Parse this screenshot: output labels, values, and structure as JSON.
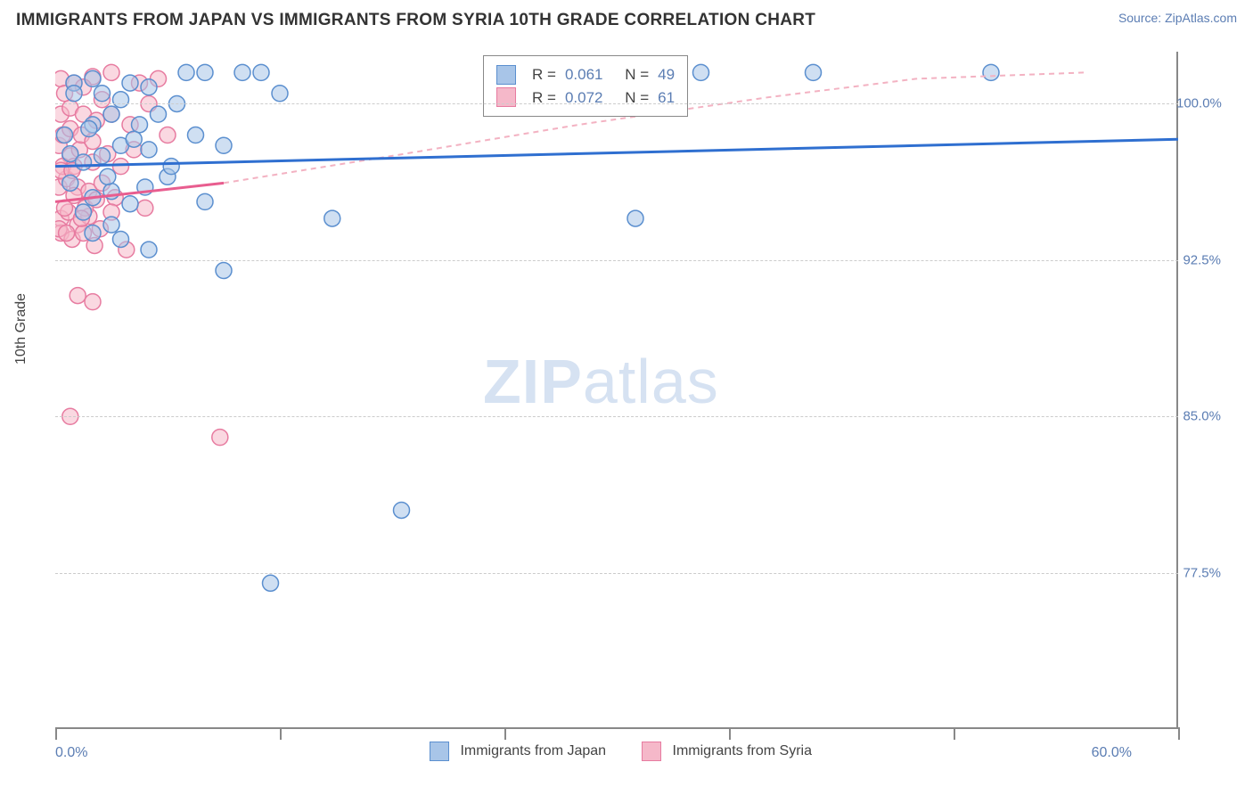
{
  "header": {
    "title": "IMMIGRANTS FROM JAPAN VS IMMIGRANTS FROM SYRIA 10TH GRADE CORRELATION CHART",
    "source_prefix": "Source: ",
    "source_value": "ZipAtlas.com"
  },
  "chart": {
    "type": "scatter",
    "xlim": [
      0,
      60
    ],
    "ylim": [
      70,
      102.5
    ],
    "xticks": [
      0,
      12,
      24,
      36,
      48,
      60
    ],
    "xtick_labels_shown": {
      "first": "0.0%",
      "last": "60.0%"
    },
    "yticks": [
      77.5,
      85.0,
      92.5,
      100.0
    ],
    "ytick_labels": [
      "77.5%",
      "85.0%",
      "92.5%",
      "100.0%"
    ],
    "ylabel": "10th Grade",
    "background_color": "#ffffff",
    "grid_color": "#cccccc",
    "grid_dash": "4,3",
    "axis_color": "#888888",
    "marker_radius": 9,
    "marker_stroke_width": 1.5,
    "series": [
      {
        "id": "japan",
        "label": "Immigrants from Japan",
        "fill": "#a8c5e8",
        "fill_opacity": 0.55,
        "stroke": "#5b8fcf",
        "trend_stroke": "#2f6fd0",
        "trend_width": 3,
        "trend": {
          "x1": 0,
          "y1": 97.0,
          "x2": 60,
          "y2": 98.3
        },
        "R_label": "R =",
        "R_value": "0.061",
        "N_label": "N =",
        "N_value": "49",
        "points": [
          [
            34.5,
            101.5
          ],
          [
            40.5,
            101.5
          ],
          [
            50.0,
            101.5
          ],
          [
            7.0,
            101.5
          ],
          [
            8.0,
            101.5
          ],
          [
            10.0,
            101.5
          ],
          [
            11.0,
            101.5
          ],
          [
            1.0,
            101.0
          ],
          [
            2.5,
            100.5
          ],
          [
            4.0,
            101.0
          ],
          [
            3.0,
            99.5
          ],
          [
            2.0,
            99.0
          ],
          [
            4.5,
            99.0
          ],
          [
            5.5,
            99.5
          ],
          [
            6.5,
            100.0
          ],
          [
            0.8,
            97.6
          ],
          [
            1.5,
            97.2
          ],
          [
            2.5,
            97.5
          ],
          [
            3.5,
            98.0
          ],
          [
            5.0,
            97.8
          ],
          [
            7.5,
            98.5
          ],
          [
            9.0,
            98.0
          ],
          [
            2.0,
            95.5
          ],
          [
            3.0,
            95.8
          ],
          [
            4.0,
            95.2
          ],
          [
            0.8,
            96.2
          ],
          [
            8.0,
            95.3
          ],
          [
            14.8,
            94.5
          ],
          [
            31.0,
            94.5
          ],
          [
            9.0,
            92.0
          ],
          [
            2.0,
            93.8
          ],
          [
            3.5,
            93.5
          ],
          [
            5.0,
            93.0
          ],
          [
            1.5,
            94.8
          ],
          [
            18.5,
            80.5
          ],
          [
            11.5,
            77.0
          ],
          [
            6.0,
            96.5
          ],
          [
            1.0,
            100.5
          ],
          [
            3.5,
            100.2
          ],
          [
            2.0,
            101.2
          ],
          [
            5.0,
            100.8
          ],
          [
            12.0,
            100.5
          ],
          [
            0.5,
            98.5
          ],
          [
            1.8,
            98.8
          ],
          [
            4.2,
            98.3
          ],
          [
            2.8,
            96.5
          ],
          [
            6.2,
            97.0
          ],
          [
            3.0,
            94.2
          ],
          [
            4.8,
            96.0
          ]
        ]
      },
      {
        "id": "syria",
        "label": "Immigrants from Syria",
        "fill": "#f5b8c9",
        "fill_opacity": 0.55,
        "stroke": "#e77ba0",
        "trend_stroke": "#e85d8f",
        "trend_width": 3,
        "trend": {
          "x1": 0,
          "y1": 95.3,
          "x2": 9,
          "y2": 96.2
        },
        "extrap_dash": "6,5",
        "extrap_stroke": "#f3b2c2",
        "extrap_curve": [
          [
            9,
            96.2
          ],
          [
            18,
            97.5
          ],
          [
            28,
            99.0
          ],
          [
            38,
            100.3
          ],
          [
            46,
            101.2
          ],
          [
            55,
            101.5
          ]
        ],
        "R_label": "R =",
        "R_value": "0.072",
        "N_label": "N =",
        "N_value": "61",
        "points": [
          [
            0.3,
            101.2
          ],
          [
            1.0,
            101.0
          ],
          [
            2.0,
            101.3
          ],
          [
            3.0,
            101.5
          ],
          [
            4.5,
            101.0
          ],
          [
            5.5,
            101.2
          ],
          [
            0.3,
            99.5
          ],
          [
            0.8,
            99.8
          ],
          [
            1.5,
            99.5
          ],
          [
            2.2,
            99.2
          ],
          [
            3.0,
            99.5
          ],
          [
            4.0,
            99.0
          ],
          [
            5.0,
            100.0
          ],
          [
            0.2,
            98.0
          ],
          [
            0.8,
            97.5
          ],
          [
            1.3,
            97.8
          ],
          [
            2.0,
            97.2
          ],
          [
            2.8,
            97.6
          ],
          [
            3.5,
            97.0
          ],
          [
            4.2,
            97.8
          ],
          [
            0.2,
            96.0
          ],
          [
            0.6,
            96.4
          ],
          [
            1.2,
            96.0
          ],
          [
            1.8,
            95.8
          ],
          [
            2.5,
            96.2
          ],
          [
            3.2,
            95.5
          ],
          [
            0.3,
            94.5
          ],
          [
            0.7,
            94.8
          ],
          [
            1.2,
            94.2
          ],
          [
            1.8,
            94.6
          ],
          [
            2.4,
            94.0
          ],
          [
            3.0,
            94.8
          ],
          [
            0.3,
            93.8
          ],
          [
            0.9,
            93.5
          ],
          [
            1.5,
            93.8
          ],
          [
            2.1,
            93.2
          ],
          [
            1.2,
            90.8
          ],
          [
            2.0,
            90.5
          ],
          [
            0.8,
            85.0
          ],
          [
            8.8,
            84.0
          ],
          [
            6.0,
            98.5
          ],
          [
            4.8,
            95.0
          ],
          [
            3.8,
            93.0
          ],
          [
            0.5,
            100.5
          ],
          [
            1.5,
            100.8
          ],
          [
            2.5,
            100.2
          ],
          [
            0.5,
            95.0
          ],
          [
            1.0,
            95.6
          ],
          [
            1.6,
            95.0
          ],
          [
            2.2,
            95.4
          ],
          [
            0.4,
            97.0
          ],
          [
            1.0,
            97.0
          ],
          [
            0.2,
            94.0
          ],
          [
            0.6,
            93.8
          ],
          [
            1.4,
            94.5
          ],
          [
            0.3,
            96.8
          ],
          [
            0.9,
            96.8
          ],
          [
            0.4,
            98.5
          ],
          [
            0.8,
            98.8
          ],
          [
            1.4,
            98.5
          ],
          [
            2.0,
            98.2
          ]
        ]
      }
    ],
    "watermark": {
      "text_bold": "ZIP",
      "text_rest": "atlas",
      "color": "#d6e2f2",
      "fontsize": 70
    }
  }
}
